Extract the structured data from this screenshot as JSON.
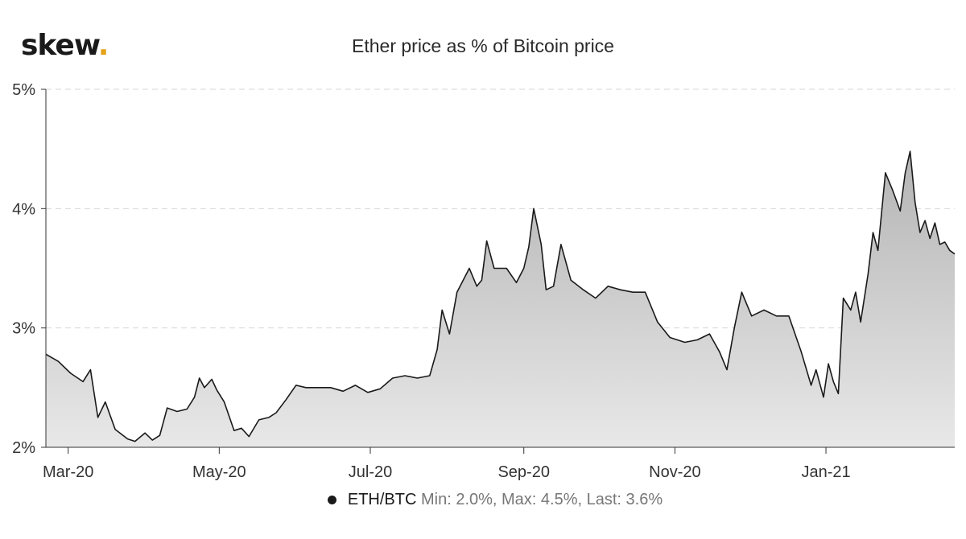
{
  "logo": {
    "text": "skew",
    "dot": "."
  },
  "colors": {
    "accent": "#e3a21a",
    "line": "#1a1a1a",
    "fill_top": "#b4b4b4",
    "fill_bottom": "#e8e8e8"
  },
  "chart_data": {
    "type": "area",
    "title": "Ether price as % of Bitcoin price",
    "xlabel": "",
    "ylabel": "",
    "ylim": [
      2,
      5
    ],
    "y_ticks": [
      2,
      3,
      4,
      5
    ],
    "y_tick_labels": [
      "2%",
      "3%",
      "4%",
      "5%"
    ],
    "x_ticks": [
      "2020-03-01",
      "2020-05-01",
      "2020-07-01",
      "2020-09-01",
      "2020-11-01",
      "2021-01-01"
    ],
    "x_tick_labels": [
      "Mar-20",
      "May-20",
      "Jul-20",
      "Sep-20",
      "Nov-20",
      "Jan-21"
    ],
    "xlim": [
      "2020-02-21",
      "2021-02-22"
    ],
    "grid": "horizontal-dashed",
    "series": [
      {
        "name": "ETH/BTC",
        "x": [
          "2020-02-21",
          "2020-02-26",
          "2020-03-02",
          "2020-03-07",
          "2020-03-10",
          "2020-03-13",
          "2020-03-16",
          "2020-03-20",
          "2020-03-25",
          "2020-03-28",
          "2020-04-01",
          "2020-04-04",
          "2020-04-07",
          "2020-04-10",
          "2020-04-14",
          "2020-04-18",
          "2020-04-21",
          "2020-04-23",
          "2020-04-25",
          "2020-04-28",
          "2020-04-30",
          "2020-05-03",
          "2020-05-07",
          "2020-05-10",
          "2020-05-13",
          "2020-05-17",
          "2020-05-21",
          "2020-05-24",
          "2020-05-28",
          "2020-06-01",
          "2020-06-05",
          "2020-06-10",
          "2020-06-15",
          "2020-06-20",
          "2020-06-25",
          "2020-06-30",
          "2020-07-05",
          "2020-07-10",
          "2020-07-15",
          "2020-07-20",
          "2020-07-25",
          "2020-07-28",
          "2020-07-30",
          "2020-08-02",
          "2020-08-05",
          "2020-08-10",
          "2020-08-13",
          "2020-08-15",
          "2020-08-17",
          "2020-08-20",
          "2020-08-25",
          "2020-08-29",
          "2020-09-01",
          "2020-09-03",
          "2020-09-05",
          "2020-09-08",
          "2020-09-10",
          "2020-09-13",
          "2020-09-16",
          "2020-09-20",
          "2020-09-25",
          "2020-09-30",
          "2020-10-05",
          "2020-10-10",
          "2020-10-15",
          "2020-10-20",
          "2020-10-25",
          "2020-10-30",
          "2020-11-05",
          "2020-11-10",
          "2020-11-15",
          "2020-11-19",
          "2020-11-22",
          "2020-11-25",
          "2020-11-28",
          "2020-12-02",
          "2020-12-07",
          "2020-12-12",
          "2020-12-17",
          "2020-12-22",
          "2020-12-26",
          "2020-12-28",
          "2020-12-31",
          "2021-01-02",
          "2021-01-04",
          "2021-01-06",
          "2021-01-08",
          "2021-01-11",
          "2021-01-13",
          "2021-01-15",
          "2021-01-18",
          "2021-01-20",
          "2021-01-22",
          "2021-01-25",
          "2021-01-28",
          "2021-01-31",
          "2021-02-02",
          "2021-02-04",
          "2021-02-06",
          "2021-02-08",
          "2021-02-10",
          "2021-02-12",
          "2021-02-14",
          "2021-02-16",
          "2021-02-18",
          "2021-02-20",
          "2021-02-22"
        ],
        "y": [
          2.78,
          2.72,
          2.62,
          2.55,
          2.65,
          2.25,
          2.38,
          2.15,
          2.07,
          2.05,
          2.12,
          2.06,
          2.1,
          2.33,
          2.3,
          2.32,
          2.42,
          2.58,
          2.5,
          2.57,
          2.48,
          2.38,
          2.14,
          2.16,
          2.09,
          2.23,
          2.25,
          2.29,
          2.4,
          2.52,
          2.5,
          2.5,
          2.5,
          2.47,
          2.52,
          2.46,
          2.49,
          2.58,
          2.6,
          2.58,
          2.6,
          2.82,
          3.15,
          2.95,
          3.3,
          3.5,
          3.35,
          3.4,
          3.73,
          3.5,
          3.5,
          3.38,
          3.5,
          3.68,
          4.0,
          3.7,
          3.32,
          3.35,
          3.7,
          3.4,
          3.32,
          3.25,
          3.35,
          3.32,
          3.3,
          3.3,
          3.05,
          2.92,
          2.88,
          2.9,
          2.95,
          2.8,
          2.65,
          3.0,
          3.3,
          3.1,
          3.15,
          3.1,
          3.1,
          2.8,
          2.52,
          2.65,
          2.42,
          2.7,
          2.55,
          2.45,
          3.25,
          3.15,
          3.3,
          3.05,
          3.45,
          3.8,
          3.65,
          4.3,
          4.15,
          3.98,
          4.3,
          4.48,
          4.05,
          3.8,
          3.9,
          3.75,
          3.88,
          3.7,
          3.72,
          3.65,
          3.62
        ]
      }
    ],
    "legend": {
      "name": "ETH/BTC",
      "stats": "Min: 2.0%, Max: 4.5%, Last: 3.6%",
      "placement": "bottom-center"
    }
  }
}
